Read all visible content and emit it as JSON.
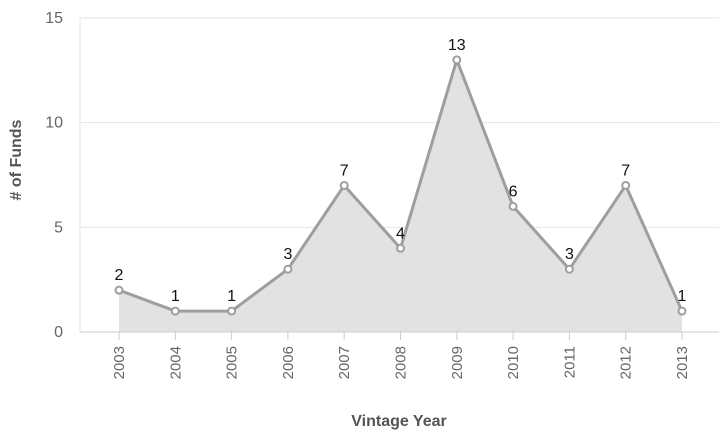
{
  "chart_data": {
    "type": "area",
    "categories": [
      "2003",
      "2004",
      "2005",
      "2006",
      "2007",
      "2008",
      "2009",
      "2010",
      "2011",
      "2012",
      "2013"
    ],
    "values": [
      2,
      1,
      1,
      3,
      7,
      4,
      13,
      6,
      3,
      7,
      1
    ],
    "xlabel": "Vintage Year",
    "ylabel": "# of Funds",
    "ylim": [
      0,
      15
    ],
    "yticks": [
      "0",
      "5",
      "10",
      "15"
    ],
    "grid": true,
    "legend": "none",
    "colors": {
      "line": "#9e9e9e",
      "fill": "#e2e2e2",
      "marker_fill": "#ffffff",
      "grid": "#e6e6e6",
      "axis": "#cccccc"
    }
  }
}
